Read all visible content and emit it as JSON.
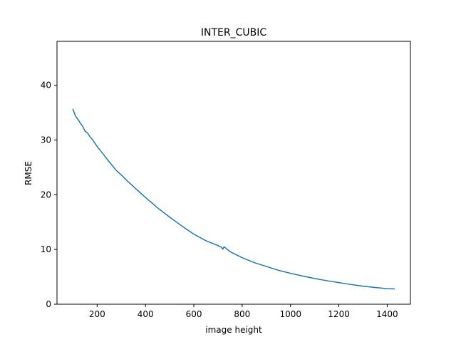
{
  "chart_data": {
    "type": "line",
    "title": "INTER_CUBIC",
    "xlabel": "image height",
    "ylabel": "RMSE",
    "xlim": [
      34,
      1496
    ],
    "ylim": [
      0,
      48
    ],
    "xticks": [
      200,
      400,
      600,
      800,
      1000,
      1200,
      1400
    ],
    "yticks": [
      0,
      10,
      20,
      30,
      40
    ],
    "grid": false,
    "legend": "none",
    "series": [
      {
        "color": "#1f77b4",
        "x": [
          100,
          110,
          120,
          130,
          140,
          150,
          160,
          170,
          180,
          200,
          220,
          250,
          280,
          300,
          330,
          360,
          400,
          450,
          500,
          550,
          600,
          650,
          700,
          715,
          720,
          725,
          750,
          800,
          850,
          900,
          950,
          1000,
          1050,
          1100,
          1150,
          1200,
          1250,
          1300,
          1350,
          1400,
          1430
        ],
        "y": [
          35.6,
          34.4,
          33.8,
          33.1,
          32.5,
          31.6,
          31.3,
          30.6,
          30.1,
          28.8,
          27.7,
          26.0,
          24.4,
          23.6,
          22.3,
          21.1,
          19.5,
          17.6,
          15.9,
          14.3,
          12.8,
          11.6,
          10.7,
          10.4,
          10.05,
          10.5,
          9.6,
          8.5,
          7.6,
          6.9,
          6.2,
          5.65,
          5.15,
          4.7,
          4.3,
          3.95,
          3.6,
          3.3,
          3.05,
          2.85,
          2.8
        ]
      }
    ]
  }
}
